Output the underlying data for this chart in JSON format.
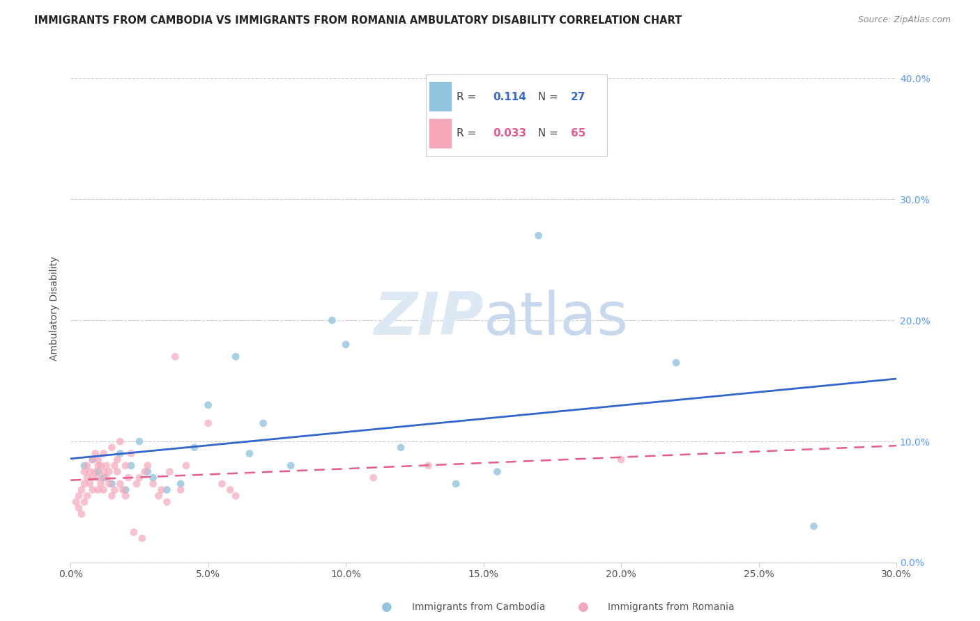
{
  "title": "IMMIGRANTS FROM CAMBODIA VS IMMIGRANTS FROM ROMANIA AMBULATORY DISABILITY CORRELATION CHART",
  "source": "Source: ZipAtlas.com",
  "xlabel_cambodia": "Immigrants from Cambodia",
  "xlabel_romania": "Immigrants from Romania",
  "ylabel": "Ambulatory Disability",
  "xlim": [
    0.0,
    0.3
  ],
  "ylim": [
    0.0,
    0.42
  ],
  "xticks": [
    0.0,
    0.05,
    0.1,
    0.15,
    0.2,
    0.25,
    0.3
  ],
  "yticks_right": [
    0.0,
    0.1,
    0.2,
    0.3,
    0.4
  ],
  "r_cambodia": 0.114,
  "n_cambodia": 27,
  "r_romania": 0.033,
  "n_romania": 65,
  "color_cambodia": "#92C5DE",
  "color_romania": "#F4A7B9",
  "trendline_cambodia_color": "#3366CC",
  "trendline_romania_color": "#E85C8A",
  "watermark_zip": "ZIP",
  "watermark_atlas": "atlas",
  "cambodia_x": [
    0.005,
    0.008,
    0.01,
    0.012,
    0.015,
    0.018,
    0.02,
    0.022,
    0.025,
    0.028,
    0.03,
    0.035,
    0.04,
    0.045,
    0.05,
    0.06,
    0.065,
    0.07,
    0.08,
    0.095,
    0.1,
    0.12,
    0.14,
    0.155,
    0.17,
    0.22,
    0.27
  ],
  "cambodia_y": [
    0.08,
    0.085,
    0.075,
    0.07,
    0.065,
    0.09,
    0.06,
    0.08,
    0.1,
    0.075,
    0.07,
    0.06,
    0.065,
    0.095,
    0.13,
    0.17,
    0.09,
    0.115,
    0.08,
    0.2,
    0.18,
    0.095,
    0.065,
    0.075,
    0.27,
    0.165,
    0.03
  ],
  "romania_x": [
    0.002,
    0.003,
    0.003,
    0.004,
    0.004,
    0.005,
    0.005,
    0.005,
    0.006,
    0.006,
    0.006,
    0.007,
    0.007,
    0.008,
    0.008,
    0.008,
    0.009,
    0.009,
    0.01,
    0.01,
    0.01,
    0.01,
    0.011,
    0.011,
    0.012,
    0.012,
    0.012,
    0.013,
    0.013,
    0.014,
    0.014,
    0.015,
    0.015,
    0.016,
    0.016,
    0.017,
    0.017,
    0.018,
    0.018,
    0.019,
    0.02,
    0.02,
    0.021,
    0.022,
    0.023,
    0.024,
    0.025,
    0.026,
    0.027,
    0.028,
    0.03,
    0.032,
    0.033,
    0.035,
    0.036,
    0.038,
    0.04,
    0.042,
    0.05,
    0.055,
    0.058,
    0.06,
    0.11,
    0.13,
    0.2
  ],
  "romania_y": [
    0.05,
    0.045,
    0.055,
    0.04,
    0.06,
    0.065,
    0.05,
    0.075,
    0.07,
    0.08,
    0.055,
    0.075,
    0.065,
    0.06,
    0.085,
    0.07,
    0.09,
    0.075,
    0.08,
    0.06,
    0.07,
    0.085,
    0.065,
    0.08,
    0.06,
    0.075,
    0.09,
    0.07,
    0.08,
    0.065,
    0.075,
    0.055,
    0.095,
    0.06,
    0.08,
    0.075,
    0.085,
    0.065,
    0.1,
    0.06,
    0.055,
    0.08,
    0.07,
    0.09,
    0.025,
    0.065,
    0.07,
    0.02,
    0.075,
    0.08,
    0.065,
    0.055,
    0.06,
    0.05,
    0.075,
    0.17,
    0.06,
    0.08,
    0.115,
    0.065,
    0.06,
    0.055,
    0.07,
    0.08,
    0.085
  ]
}
